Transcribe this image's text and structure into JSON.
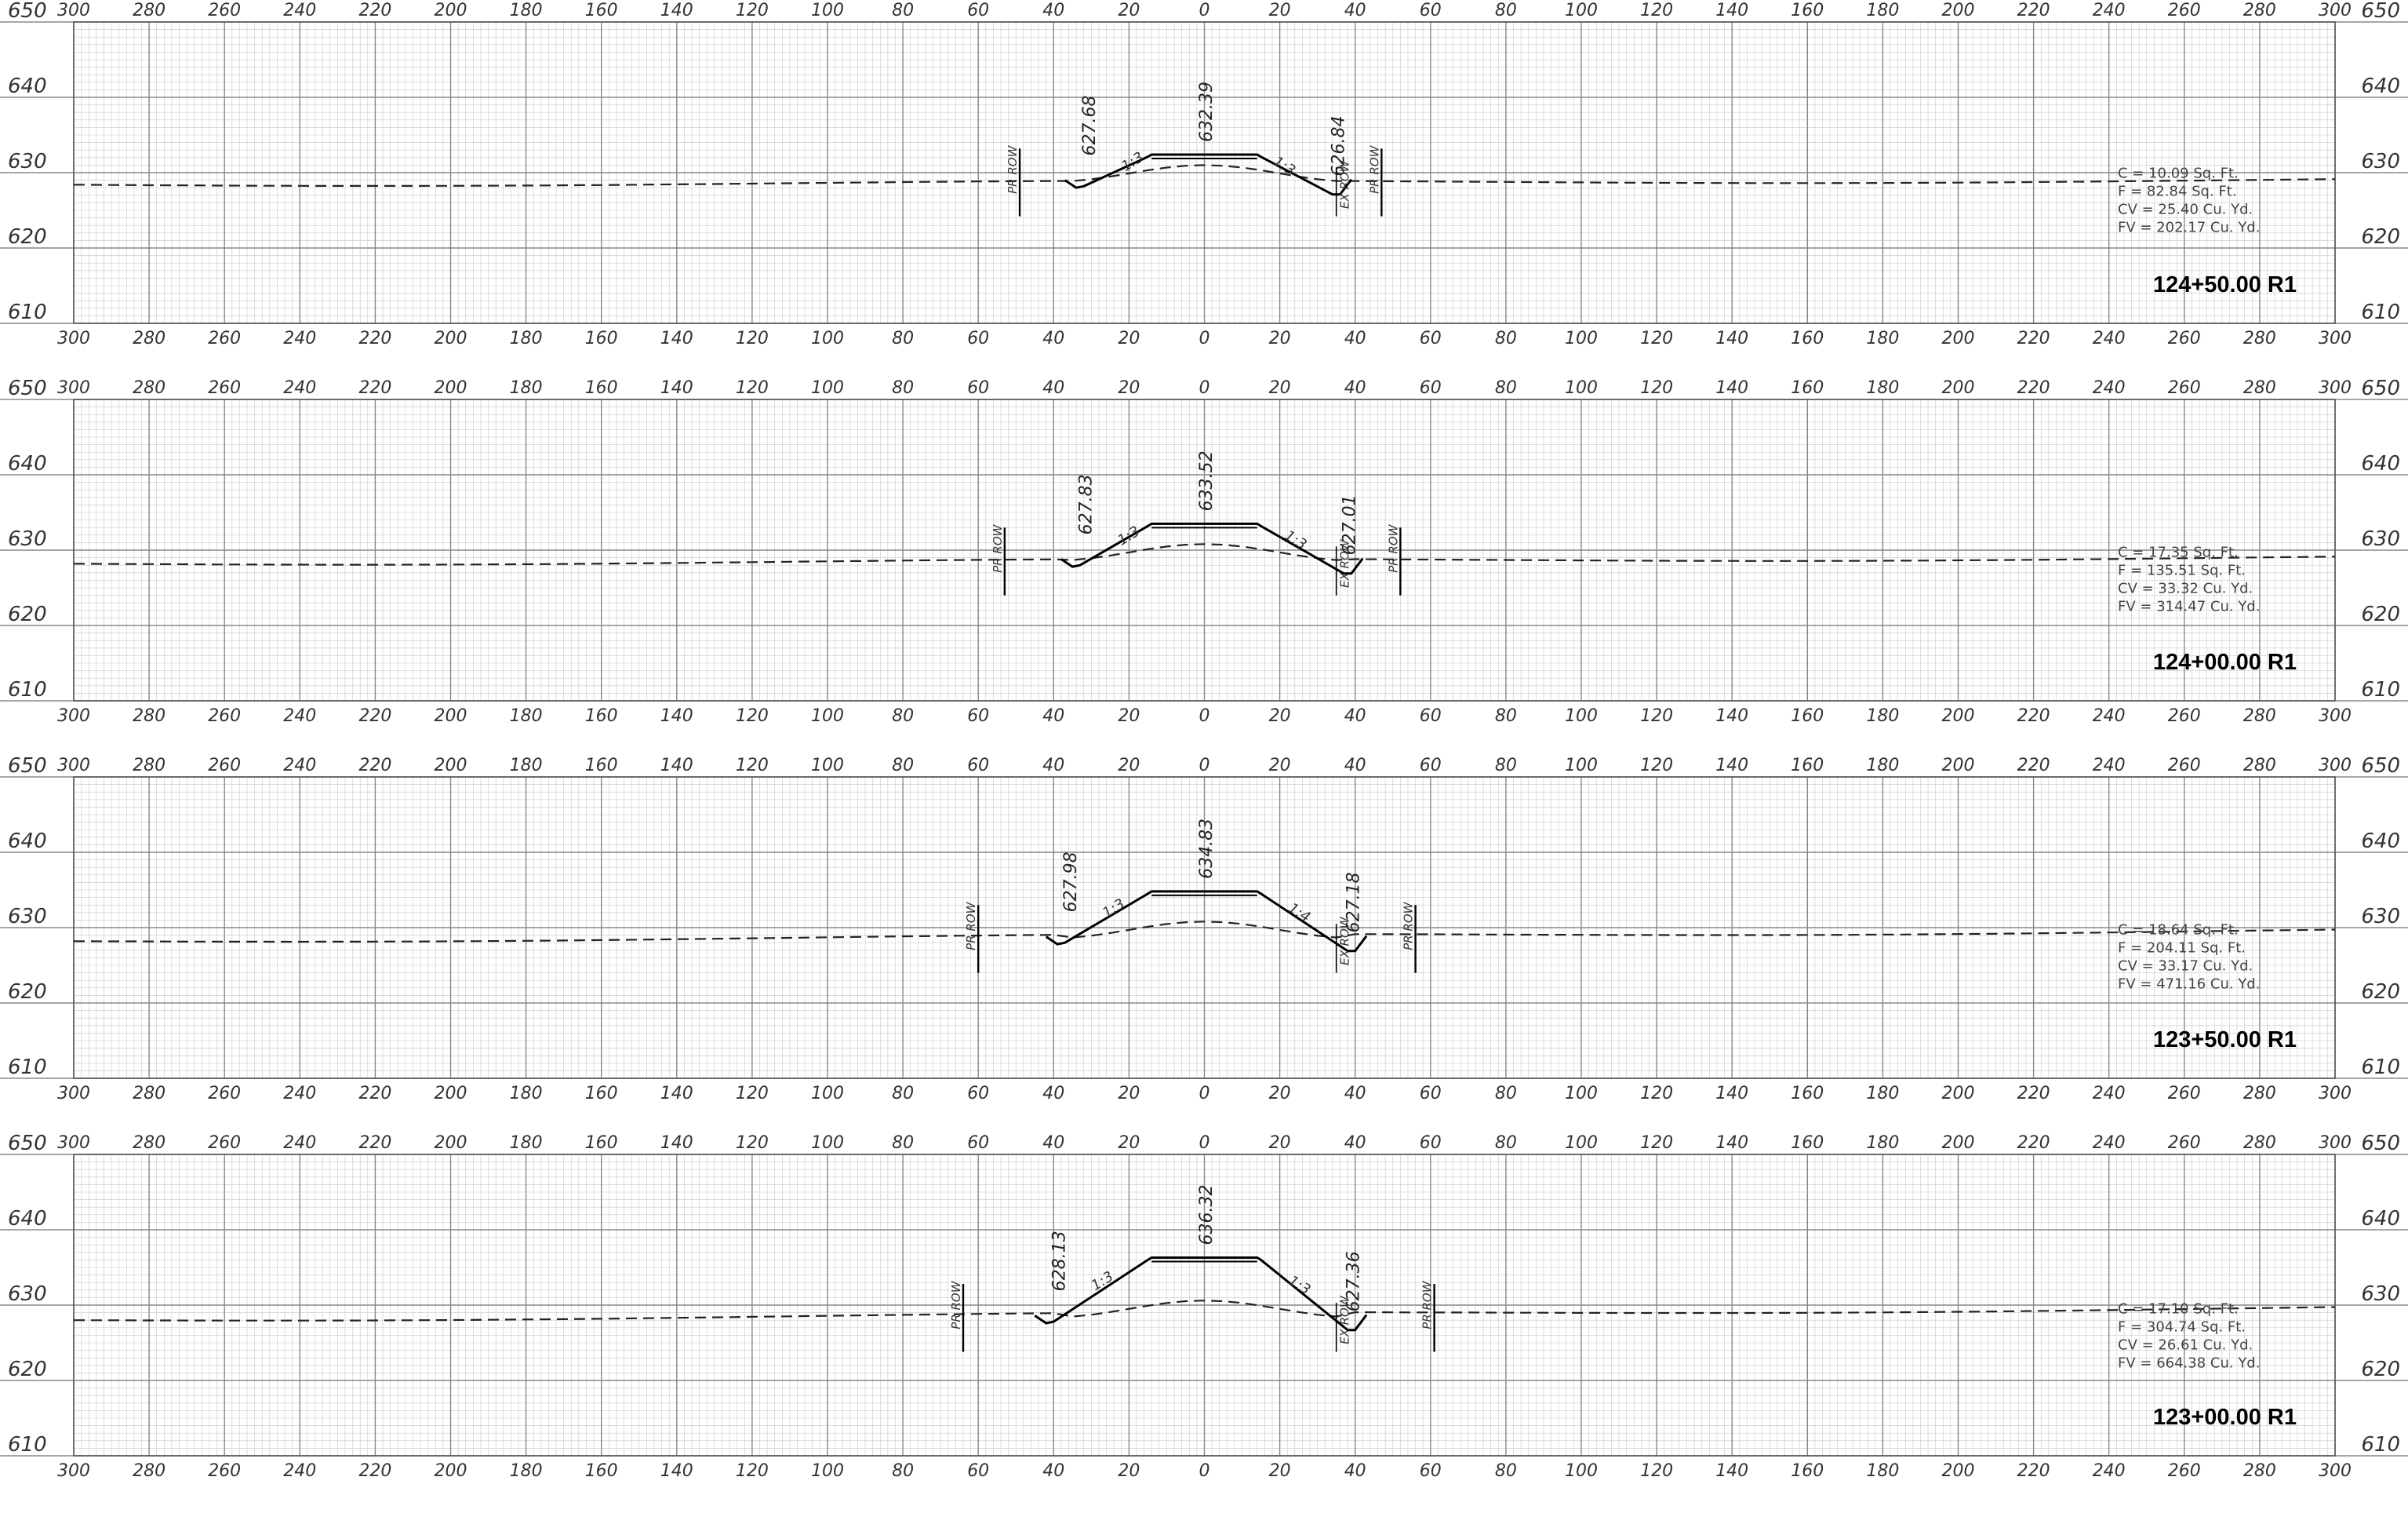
{
  "x_ticks": [
    300,
    280,
    260,
    240,
    220,
    200,
    180,
    160,
    140,
    120,
    100,
    80,
    60,
    40,
    20,
    0,
    20,
    40,
    60,
    80,
    100,
    120,
    140,
    160,
    180,
    200,
    220,
    240,
    260,
    280,
    300
  ],
  "y_ticks": [
    650,
    640,
    630,
    620,
    610
  ],
  "x_range": [
    -300,
    300
  ],
  "y_range": [
    610,
    650
  ],
  "colors": {
    "line": "#000000",
    "grid_major": "#888888",
    "grid_minor": "#c8c8c8",
    "ground": "#222222"
  },
  "sections": [
    {
      "station": "124+50.00  R1",
      "centerline_elev": "632.39",
      "left_toe_elev": "627.68",
      "right_toe_elev": "626.84",
      "left_slope": "1:3",
      "right_slope": "1:3",
      "left_row_label": "PR ROW",
      "right_row_label": "PR ROW",
      "right_ex_label": "EX ROW",
      "quantities": [
        "C = 10.09 Sq. Ft.",
        "F = 82.84 Sq. Ft.",
        "CV = 25.40 Cu. Yd.",
        "FV = 202.17 Cu. Yd."
      ],
      "top_elev": 632.4,
      "left_toe_x": -32,
      "right_toe_x": 34,
      "left_row_x": -49,
      "right_row_x": 47,
      "ex_row_x": 35,
      "ground_left": 628.4,
      "ground_right": 629.0
    },
    {
      "station": "124+00.00  R1",
      "centerline_elev": "633.52",
      "left_toe_elev": "627.83",
      "right_toe_elev": "627.01",
      "left_slope": "1:3",
      "right_slope": "1:3",
      "left_row_label": "PR ROW",
      "right_row_label": "PR ROW",
      "right_ex_label": "EX ROW",
      "quantities": [
        "C = 17.35 Sq. Ft.",
        "F = 135.51 Sq. Ft.",
        "CV = 33.32 Cu. Yd.",
        "FV = 314.47 Cu. Yd."
      ],
      "top_elev": 633.5,
      "left_toe_x": -33,
      "right_toe_x": 37,
      "left_row_x": -53,
      "right_row_x": 52,
      "ex_row_x": 35,
      "ground_left": 628.2,
      "ground_right": 629.0
    },
    {
      "station": "123+50.00  R1",
      "centerline_elev": "634.83",
      "left_toe_elev": "627.98",
      "right_toe_elev": "627.18",
      "left_slope": "1:3",
      "right_slope": "1:4",
      "left_row_label": "PR ROW",
      "right_row_label": "PR ROW",
      "right_ex_label": "EX ROW",
      "quantities": [
        "C = 18.64 Sq. Ft.",
        "F = 204.11 Sq. Ft.",
        "CV = 33.17 Cu. Yd.",
        "FV = 471.16 Cu. Yd."
      ],
      "top_elev": 634.8,
      "left_toe_x": -37,
      "right_toe_x": 38,
      "left_row_x": -60,
      "right_row_x": 56,
      "ex_row_x": 35,
      "ground_left": 628.2,
      "ground_right": 629.6
    },
    {
      "station": "123+00.00  R1",
      "centerline_elev": "636.32",
      "left_toe_elev": "628.13",
      "right_toe_elev": "627.36",
      "left_slope": "1:3",
      "right_slope": "1:3",
      "left_row_label": "PR ROW",
      "right_row_label": "PR ROW",
      "right_ex_label": "EX ROW",
      "quantities": [
        "C = 17.10 Sq. Ft.",
        "F = 304.74 Sq. Ft.",
        "CV = 26.61 Cu. Yd.",
        "FV = 664.38 Cu. Yd."
      ],
      "top_elev": 636.3,
      "left_toe_x": -40,
      "right_toe_x": 38,
      "left_row_x": -64,
      "right_row_x": 61,
      "ex_row_x": 35,
      "ground_left": 628.0,
      "ground_right": 629.6
    }
  ]
}
